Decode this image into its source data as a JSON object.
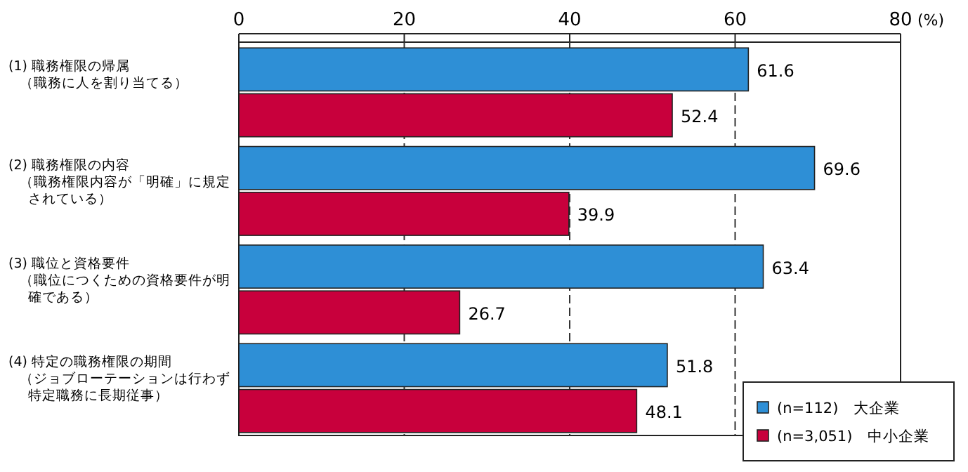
{
  "chart_data": {
    "type": "bar",
    "orientation": "horizontal",
    "categories": [
      "(1) 職務権限の帰属（職務に人を割り当てる）",
      "(2) 職務権限の内容（職務権限内容が「明確」に規定されている）",
      "(3) 職位と資格要件（職位につくための資格要件が明確である）",
      "(4) 特定の職務権限の期間（ジョブローテーションは行わず特定職務に長期従事）"
    ],
    "series": [
      {
        "name": "(n=112)　大企業",
        "color": "#2e8fd6",
        "values": [
          61.6,
          69.6,
          63.4,
          51.8
        ]
      },
      {
        "name": "(n=3,051)　中小企業",
        "color": "#c8003c",
        "values": [
          52.4,
          39.9,
          26.7,
          48.1
        ]
      }
    ],
    "xlim": [
      0,
      80
    ],
    "xticks": [
      0,
      20,
      40,
      60,
      80
    ],
    "xlabel": "(%)",
    "grid": "x",
    "line_style": "dashed",
    "data_labels": true,
    "legend": "bottom right"
  }
}
